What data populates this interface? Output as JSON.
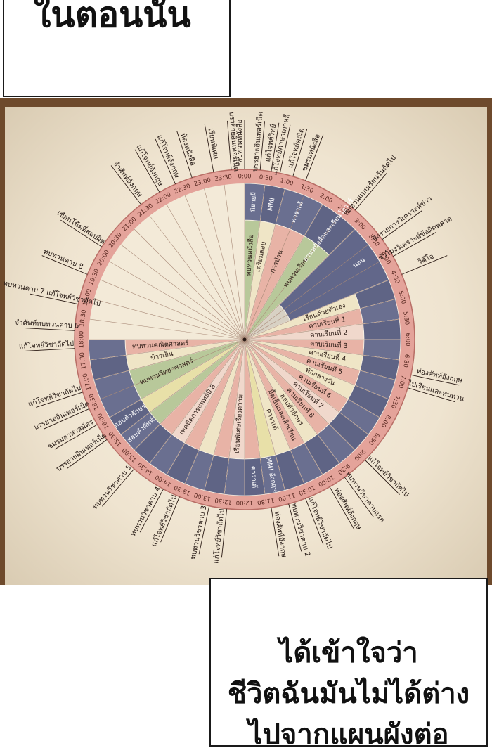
{
  "captions": {
    "top": "ในตอนนั้น",
    "bottom": [
      "ได้เข้าใจว่า",
      "ชีวิตฉันมันไม่ได้ต่าง",
      "ไปจากแผนผังต่อ"
    ]
  },
  "times": [
    "0:00",
    "0:30",
    "1:00",
    "1:30",
    "2:00",
    "2:30",
    "3:00",
    "3:30",
    "4:00",
    "4:30",
    "5:00",
    "5:30",
    "6:00",
    "6:30",
    "7:00",
    "7:30",
    "8:00",
    "8:30",
    "9:00",
    "9:30",
    "10:00",
    "10:30",
    "11:00",
    "11:30",
    "12:00",
    "12:30",
    "13:00",
    "13:30",
    "14:00",
    "14:30",
    "15:00",
    "15:30",
    "16:00",
    "16:30",
    "17:00",
    "17:30",
    "18:00",
    "18:30",
    "19:00",
    "19:30",
    "20:00",
    "20:30",
    "21:00",
    "21:30",
    "22:00",
    "22:30",
    "23:00",
    "23:30"
  ],
  "segments": [
    {
      "start": 0,
      "end": 1,
      "inner": "ทบทวนหนังสือ",
      "outer": "นิยายผี",
      "color": "#b8c89a"
    },
    {
      "start": 1,
      "end": 2,
      "inner": "เตรียมสอบ",
      "outer": "MMI",
      "color": "#efe5c6"
    },
    {
      "start": 2,
      "end": 4,
      "inner": "การบ้าน",
      "outer": "คาราเต้",
      "color": "#e8b3a6"
    },
    {
      "start": 4,
      "end": 6,
      "inner": "ทบทวนเรียน",
      "outer": "อ่านหนังสือและเรียนโอวาร์",
      "color": "#b8c89a"
    },
    {
      "start": 6,
      "end": 9,
      "inner": "",
      "outer": "นอน",
      "color": "#d8d1c4"
    },
    {
      "start": 9,
      "end": 10,
      "inner": "เรียนด้วยตัวเอง",
      "outer": "",
      "color": "#efe5c6"
    },
    {
      "start": 10,
      "end": 11,
      "inner": "คาบเรียนที่ 1",
      "outer": "",
      "color": "#e8b3a6"
    },
    {
      "start": 11,
      "end": 12,
      "inner": "คาบเรียนที่ 2",
      "outer": "",
      "color": "#f0d8cc"
    },
    {
      "start": 12,
      "end": 13,
      "inner": "คาบเรียนที่ 3",
      "outer": "",
      "color": "#e8b3a6"
    },
    {
      "start": 13,
      "end": 14,
      "inner": "คาบเรียนที่ 4",
      "outer": "",
      "color": "#efe5c6"
    },
    {
      "start": 14,
      "end": 15,
      "inner": "คาบเรียนที่ 5",
      "outer": "",
      "color": "#e8b3a6"
    },
    {
      "start": 15,
      "end": 16,
      "inner": "พักกลางวัน",
      "outer": "",
      "color": "#efe5c6"
    },
    {
      "start": 16,
      "end": 17,
      "inner": "คาบเรียนที่ 6",
      "outer": "",
      "color": "#e8b3a6"
    },
    {
      "start": 17,
      "end": 18,
      "inner": "คาบเรียนที่ 7",
      "outer": "",
      "color": "#f0d8cc"
    },
    {
      "start": 18,
      "end": 19,
      "inner": "คาบเรียนที่ 8",
      "outer": "",
      "color": "#e8b3a6"
    },
    {
      "start": 19,
      "end": 20,
      "inner": "สอบตัวอักษร",
      "outer": "",
      "color": "#efe5c6"
    },
    {
      "start": 20,
      "end": 21,
      "inner": "มื้อเย็นและเลิกเรียน",
      "outer": "",
      "color": "#e8b3a6"
    },
    {
      "start": 21,
      "end": 22,
      "inner": "คาราเต้",
      "outer": "",
      "color": "#efe5c6"
    },
    {
      "start": 22,
      "end": 23,
      "inner": "",
      "outer": "MMI อังกฤษ",
      "color": "#e8e0a8"
    },
    {
      "start": 23,
      "end": 24,
      "inner": "",
      "outer": "คาราเต้",
      "color": "#e8b3a6"
    },
    {
      "start": 24,
      "end": 25,
      "inner": "เรียนพิเศษเรียงความ",
      "outer": "",
      "color": "#f0d8cc"
    },
    {
      "start": 25,
      "end": 26,
      "inner": "",
      "outer": "",
      "color": "#e8b3a6"
    },
    {
      "start": 26,
      "end": 27,
      "inner": "",
      "outer": "",
      "color": "#efe5c6"
    },
    {
      "start": 27,
      "end": 28,
      "inner": "",
      "outer": "",
      "color": "#e8b3a6"
    },
    {
      "start": 28,
      "end": 29,
      "inner": "เทคนิคการแพทย์ปี 8",
      "outer": "",
      "color": "#f0d8cc"
    },
    {
      "start": 29,
      "end": 30,
      "inner": "",
      "outer": "",
      "color": "#e8b3a6"
    },
    {
      "start": 30,
      "end": 31,
      "inner": "",
      "outer": "สอบคำศัพท์",
      "color": "#b8c89a"
    },
    {
      "start": 31,
      "end": 32,
      "inner": "",
      "outer": "สอบตัวอักษร",
      "color": "#e8e0a8"
    },
    {
      "start": 32,
      "end": 34,
      "inner": "ทบทวนวิทยาศาสตร์",
      "outer": "",
      "color": "#b8c89a"
    },
    {
      "start": 34,
      "end": 35,
      "inner": "ข้าวเย็น",
      "outer": "",
      "color": "#efe5c6"
    },
    {
      "start": 35,
      "end": 36,
      "inner": "ทบทวนคณิตศาสตร์",
      "outer": "",
      "color": "#e8b3a6"
    }
  ],
  "outside_labels": [
    {
      "hour": 0.0,
      "text": "ทบทวนหนังสือ"
    },
    {
      "hour": 1.6,
      "text": "แก้โจทย์ภาษาเกาหลี"
    },
    {
      "hour": 5.4,
      "text": "ทบทวนแบบเรียนวันถัดไป"
    },
    {
      "hour": 7.2,
      "text": "ฟังรายการวิเคราะห์ข่าว"
    },
    {
      "hour": 8.1,
      "text": "ชั่วโมงวิเคราะห์ข้อผิดพลาด"
    },
    {
      "hour": 9.0,
      "text": "วิดีโอ"
    },
    {
      "hour": 13.6,
      "text": "ท่องศัพท์อังกฤษ"
    },
    {
      "hour": 14.2,
      "text": "ไปเรียนและทบทวน"
    },
    {
      "hour": 18.0,
      "text": "แก้โจทย์วิชาถัดไป"
    },
    {
      "hour": 19.2,
      "text": "ทบทวนวิชาคาบแรก"
    },
    {
      "hour": 20.0,
      "text": "ท่องศัพท์อังกฤษ"
    },
    {
      "hour": 21.2,
      "text": "แก้โจทย์วิชาถัดไป"
    },
    {
      "hour": 22.0,
      "text": "ทบทวนวิชาคาบ 2"
    },
    {
      "hour": 22.8,
      "text": "ท่องศัพท์อังกฤษ"
    },
    {
      "hour": 24.8,
      "text": "แก้โจทย์วิชาถัดไป"
    },
    {
      "hour": 25.6,
      "text": "ทบทวนวิชาคาบ 3"
    },
    {
      "hour": 27.0,
      "text": "แก้โจทย์วิชาถัดไป"
    },
    {
      "hour": 27.8,
      "text": "ทบทวนวิชาคาบ 4"
    },
    {
      "hour": 29.4,
      "text": "ทบทวนวิชาคาบ 5"
    },
    {
      "hour": 31.2,
      "text": "บรรยายอินเทอร์เน็ต"
    },
    {
      "hour": 32.0,
      "text": "ชมรมอาสาสมัคร"
    },
    {
      "hour": 32.8,
      "text": "บรรยายอินเทอร์เน็ต"
    },
    {
      "hour": 33.6,
      "text": "แก้โจทย์วิชาถัดไป"
    },
    {
      "hour": 35.6,
      "text": "แก้โจทย์วิชาถัดไป"
    },
    {
      "hour": 36.4,
      "text": "จำศัพท์ทบทวนคาบ 6"
    },
    {
      "hour": 37.6,
      "text": "ทบทวนคาบ 7 แก้โจทย์วิชาถัดไป"
    },
    {
      "hour": 39.0,
      "text": "ทบทวนคาบ 8"
    },
    {
      "hour": 40.4,
      "text": "เขียนโน้ตที่สอบผิด"
    },
    {
      "hour": 43.0,
      "text": "จำศัพท์อังกฤษ"
    },
    {
      "hour": 44.0,
      "text": "แก้โจทย์อังกฤษ"
    },
    {
      "hour": 44.8,
      "text": "แก้โจทย์อังกฤษ"
    },
    {
      "hour": 45.6,
      "text": "ห้องหนังสือ"
    },
    {
      "hour": 46.6,
      "text": "เรียนพิเศษ"
    },
    {
      "hour": 47.4,
      "text": "บรรยายอินเทอร์เน็ต"
    },
    {
      "hour": 0.7,
      "text": "บรรยายอินเทอร์เน็ต"
    },
    {
      "hour": 1.2,
      "text": "แก้โจทย์วิทย์"
    },
    {
      "hour": 2.2,
      "text": "แก้โจทย์คณิต"
    },
    {
      "hour": 2.8,
      "text": "ชมรมหนังสือ"
    }
  ]
}
